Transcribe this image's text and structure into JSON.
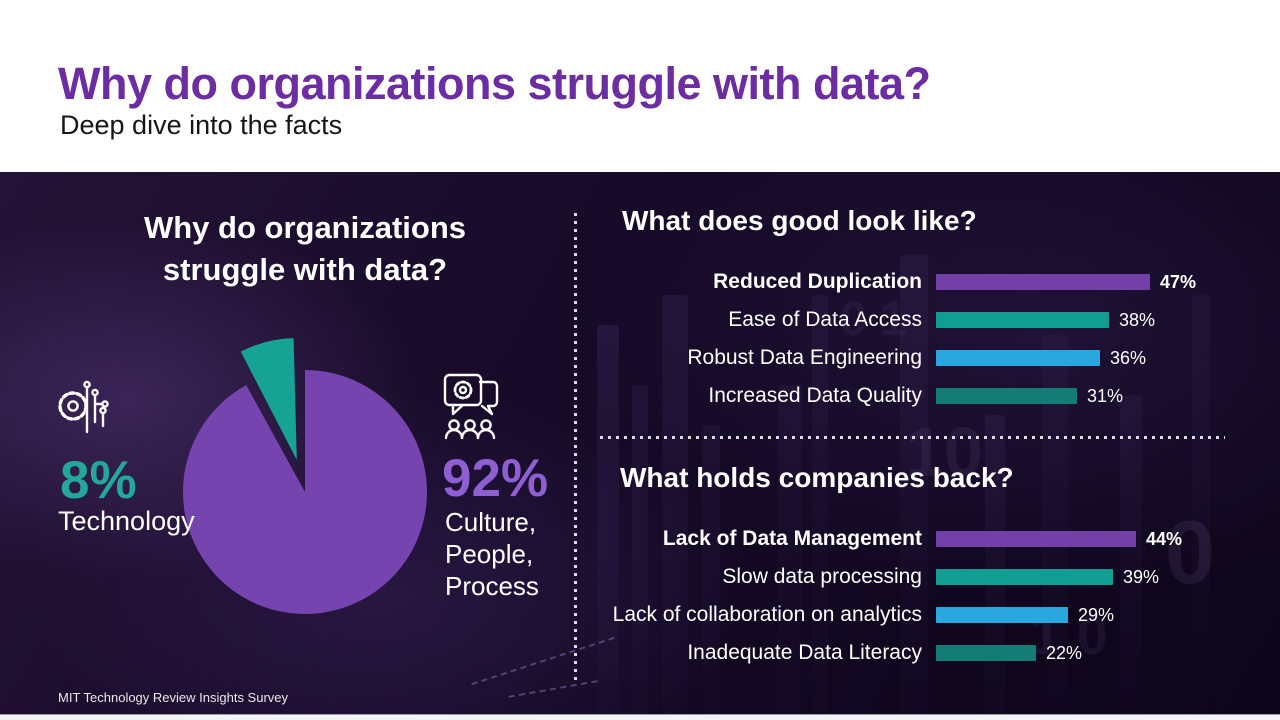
{
  "colors": {
    "title_purple": "#6B2DA1",
    "pie_purple": "#7644AE",
    "pie_teal": "#17A393",
    "pct8_teal": "#23A79A",
    "pct92_purple": "#8D5FD1",
    "bar_purple": "#7340A8",
    "bar_teal": "#119D92",
    "bar_blue": "#29A8E0",
    "bar_dark_teal": "#147B75"
  },
  "header": {
    "title": "Why do organizations struggle with data?",
    "subtitle": "Deep dive into the facts"
  },
  "left_panel": {
    "heading_lines": [
      "Why do organizations",
      "struggle with data?"
    ],
    "technology": {
      "value": "8%",
      "label": "Technology",
      "icon": "circuit-gear-icon"
    },
    "culture": {
      "value": "92%",
      "label_lines": [
        "Culture,",
        "People,",
        "Process"
      ],
      "icon": "chat-gear-people-icon"
    }
  },
  "sections": [
    {
      "heading": "What does good look like?",
      "rows": [
        {
          "label": "Reduced Duplication",
          "value": 47,
          "display": "47%",
          "color_key": "bar_purple",
          "bold": true
        },
        {
          "label": "Ease of Data Access",
          "value": 38,
          "display": "38%",
          "color_key": "bar_teal",
          "bold": false
        },
        {
          "label": "Robust Data Engineering",
          "value": 36,
          "display": "36%",
          "color_key": "bar_blue",
          "bold": false
        },
        {
          "label": "Increased Data Quality",
          "value": 31,
          "display": "31%",
          "color_key": "bar_dark_teal",
          "bold": false
        }
      ]
    },
    {
      "heading": "What holds companies back?",
      "rows": [
        {
          "label": "Lack of Data Management",
          "value": 44,
          "display": "44%",
          "color_key": "bar_purple",
          "bold": true
        },
        {
          "label": "Slow data processing",
          "value": 39,
          "display": "39%",
          "color_key": "bar_teal",
          "bold": false
        },
        {
          "label": "Lack of collaboration on analytics",
          "value": 29,
          "display": "29%",
          "color_key": "bar_blue",
          "bold": false
        },
        {
          "label": "Inadequate Data Literacy",
          "value": 22,
          "display": "22%",
          "color_key": "bar_dark_teal",
          "bold": false
        }
      ]
    }
  ],
  "footer": {
    "source": "MIT Technology Review Insights Survey"
  },
  "chart_data": [
    {
      "type": "pie",
      "title": "Why do organizations struggle with data?",
      "labels": [
        "Culture, People, Process",
        "Technology"
      ],
      "values": [
        92,
        8
      ],
      "value_labels": [
        "92%",
        "8%"
      ],
      "colors": [
        "#7644AE",
        "#17A393"
      ],
      "exploded_slice": "Technology",
      "legend_position": "sides"
    },
    {
      "type": "bar",
      "orientation": "horizontal",
      "title": "What does good look like?",
      "categories": [
        "Reduced Duplication",
        "Ease of Data Access",
        "Robust Data Engineering",
        "Increased Data Quality"
      ],
      "values": [
        47,
        38,
        36,
        31
      ],
      "value_labels": [
        "47%",
        "38%",
        "36%",
        "31%"
      ],
      "bar_colors": [
        "#7340A8",
        "#119D92",
        "#29A8E0",
        "#147B75"
      ],
      "unit": "%",
      "xlim": [
        0,
        50
      ],
      "grid": false
    },
    {
      "type": "bar",
      "orientation": "horizontal",
      "title": "What holds companies back?",
      "categories": [
        "Lack of Data Management",
        "Slow data processing",
        "Lack of collaboration on analytics",
        "Inadequate Data Literacy"
      ],
      "values": [
        44,
        39,
        29,
        22
      ],
      "value_labels": [
        "44%",
        "39%",
        "29%",
        "22%"
      ],
      "bar_colors": [
        "#7340A8",
        "#119D92",
        "#29A8E0",
        "#147B75"
      ],
      "unit": "%",
      "xlim": [
        0,
        50
      ],
      "grid": false
    }
  ]
}
